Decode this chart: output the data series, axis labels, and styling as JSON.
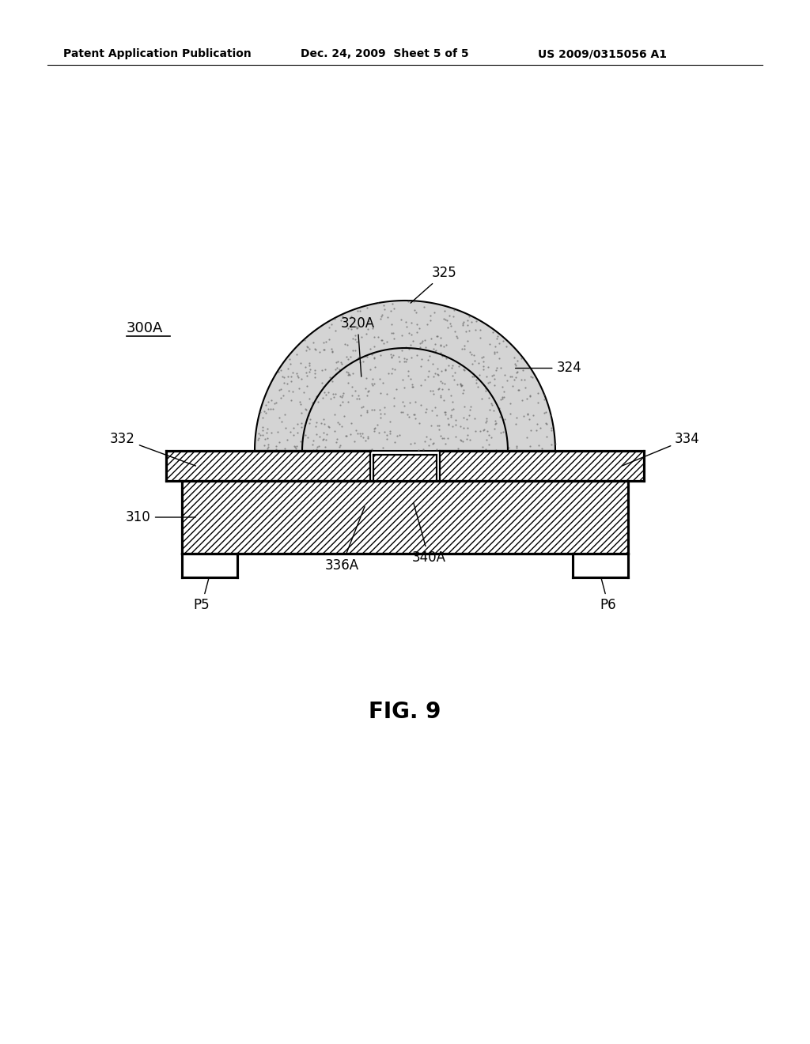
{
  "bg_color": "#ffffff",
  "line_color": "#000000",
  "fig_label": "FIG. 9",
  "header_left": "Patent Application Publication",
  "header_mid": "Dec. 24, 2009  Sheet 5 of 5",
  "header_right": "US 2009/0315056 A1",
  "label_300A": "300A",
  "label_325": "325",
  "label_320A": "320A",
  "label_324": "324",
  "label_332": "332",
  "label_334": "334",
  "label_310": "310",
  "label_336A": "336A",
  "label_340A": "340A",
  "label_P5": "P5",
  "label_P6": "P6"
}
